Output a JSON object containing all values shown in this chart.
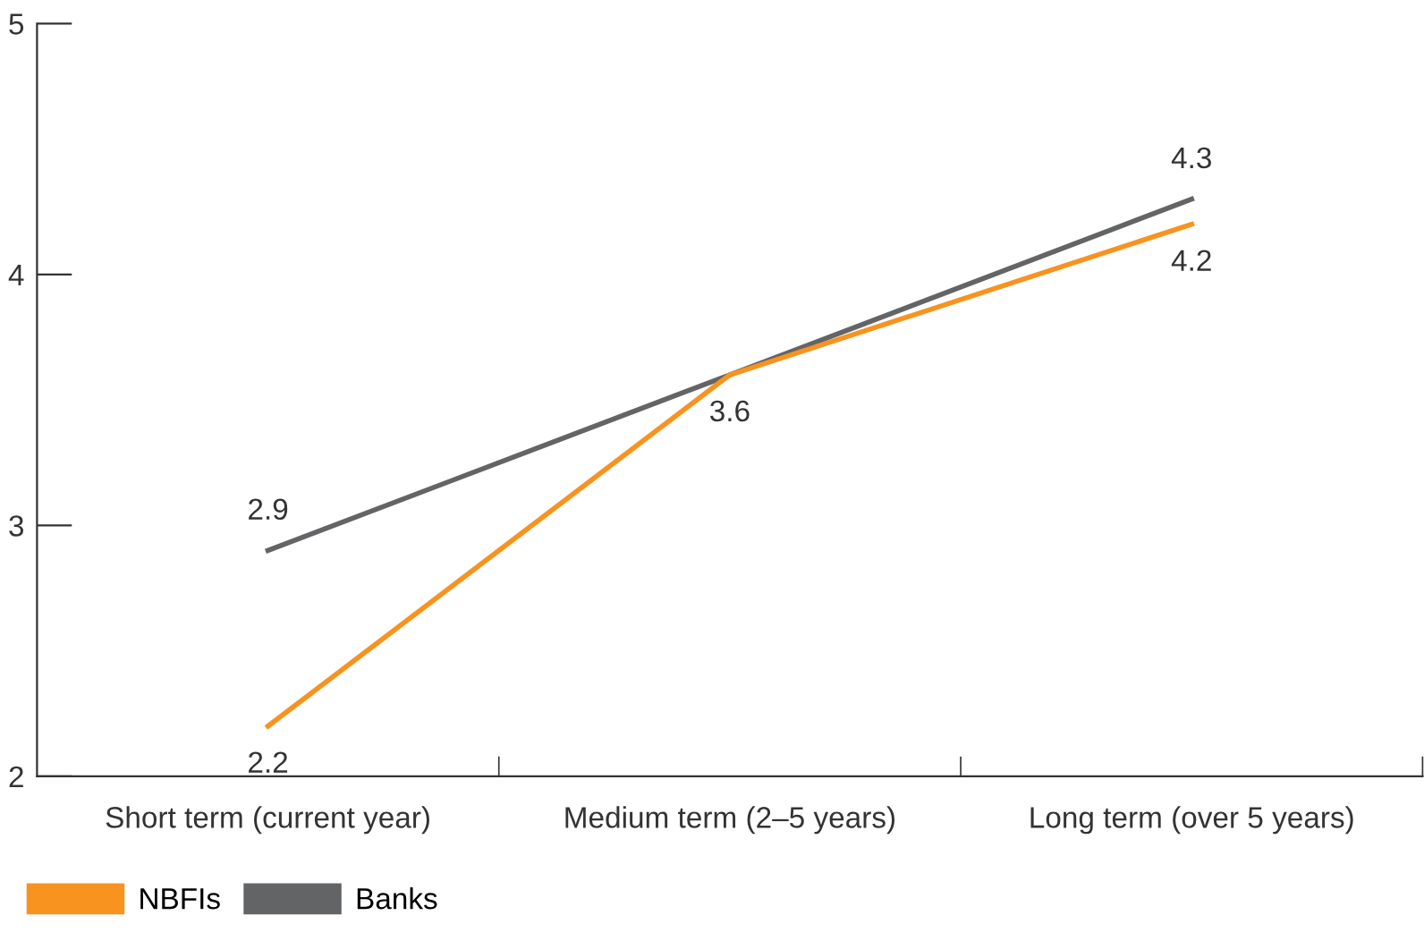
{
  "chart_data": {
    "type": "line",
    "categories": [
      "Short term (current year)",
      "Medium term (2–5 years)",
      "Long term (over 5 years)"
    ],
    "series": [
      {
        "name": "NBFIs",
        "color": "#f7931e",
        "values": [
          2.2,
          3.6,
          4.2
        ],
        "value_labels": [
          "2.2",
          "3.6",
          "4.2"
        ]
      },
      {
        "name": "Banks",
        "color": "#636466",
        "values": [
          2.9,
          3.6,
          4.3
        ],
        "value_labels": [
          "2.9",
          null,
          "4.3"
        ]
      }
    ],
    "ylim": [
      2,
      5
    ],
    "yticks": [
      2,
      3,
      4,
      5
    ],
    "grid": false,
    "legend": "bottom left",
    "marker": "none",
    "line_style": "solid"
  }
}
